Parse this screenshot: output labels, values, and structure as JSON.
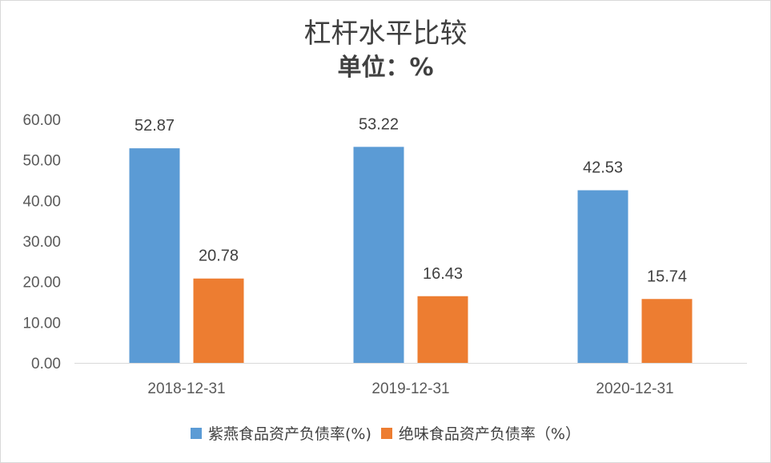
{
  "chart_data": {
    "type": "bar",
    "title": "杠杆水平比较",
    "subtitle": "单位：%",
    "categories": [
      "2018-12-31",
      "2019-12-31",
      "2020-12-31"
    ],
    "series": [
      {
        "name": "紫燕食品资产负债率(%)",
        "values": [
          52.87,
          53.22,
          42.53
        ],
        "color": "#5B9BD5"
      },
      {
        "name": "绝味食品资产负债率（%）",
        "values": [
          20.78,
          16.43,
          15.74
        ],
        "color": "#ED7D31"
      }
    ],
    "ylim": [
      0,
      60
    ],
    "yticks": [
      "0.00",
      "10.00",
      "20.00",
      "30.00",
      "40.00",
      "50.00",
      "60.00"
    ],
    "value_labels": [
      [
        "52.87",
        "53.22",
        "42.53"
      ],
      [
        "20.78",
        "16.43",
        "15.74"
      ]
    ],
    "grid": false,
    "legend_position": "bottom"
  }
}
